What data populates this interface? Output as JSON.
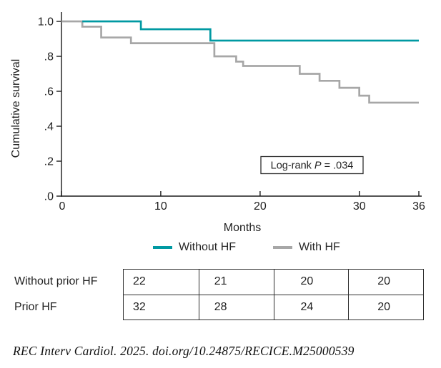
{
  "chart": {
    "ylabel": "Cumulative survival",
    "xlabel": "Months",
    "yticks": [
      "1.0",
      ".8",
      ".6",
      ".4",
      ".2",
      ".0"
    ],
    "xticks": [
      "0",
      "10",
      "20",
      "30",
      "36"
    ],
    "logrank": {
      "prefix": "Log-rank ",
      "p_symbol": "P",
      "suffix": " = .034"
    }
  },
  "chart_data": {
    "type": "line",
    "subtype": "kaplan-meier-step",
    "title": "",
    "xlabel": "Months",
    "ylabel": "Cumulative survival",
    "xlim": [
      0,
      36
    ],
    "ylim": [
      0.0,
      1.0
    ],
    "x_ticks": [
      0,
      10,
      20,
      30,
      36
    ],
    "y_ticks": [
      1.0,
      0.8,
      0.6,
      0.4,
      0.2,
      0.0
    ],
    "grid": false,
    "legend_position": "bottom",
    "annotation": "Log-rank P = .034",
    "series": [
      {
        "name": "Without HF",
        "color": "#0099A2",
        "step": true,
        "x": [
          2.1,
          8,
          15,
          36
        ],
        "y": [
          1.0,
          0.955,
          0.89,
          0.89
        ]
      },
      {
        "name": "With HF",
        "color": "#A7A7A7",
        "step": true,
        "x": [
          0,
          2.1,
          4,
          7,
          15.4,
          17.6,
          18.3,
          24,
          26,
          28,
          30,
          31,
          36
        ],
        "y": [
          1.0,
          0.97,
          0.908,
          0.875,
          0.8,
          0.77,
          0.745,
          0.7,
          0.66,
          0.62,
          0.575,
          0.535,
          0.535
        ]
      }
    ]
  },
  "legend": {
    "items": [
      {
        "label": "Without HF",
        "color": "#0099A2"
      },
      {
        "label": "With HF",
        "color": "#A7A7A7"
      }
    ]
  },
  "risk_table": {
    "rows": [
      {
        "label": "Without prior HF",
        "values": [
          "22",
          "21",
          "20",
          "20"
        ]
      },
      {
        "label": "Prior HF",
        "values": [
          "32",
          "28",
          "24",
          "20"
        ]
      }
    ]
  },
  "citation": "REC Interv Cardiol. 2025. doi.org/10.24875/RECICE.M25000539",
  "colors": {
    "without_hf": "#0099A2",
    "with_hf": "#A7A7A7",
    "axis": "#1a1a1a",
    "text": "#1f1f1f",
    "table_border": "#2e2e2e"
  }
}
